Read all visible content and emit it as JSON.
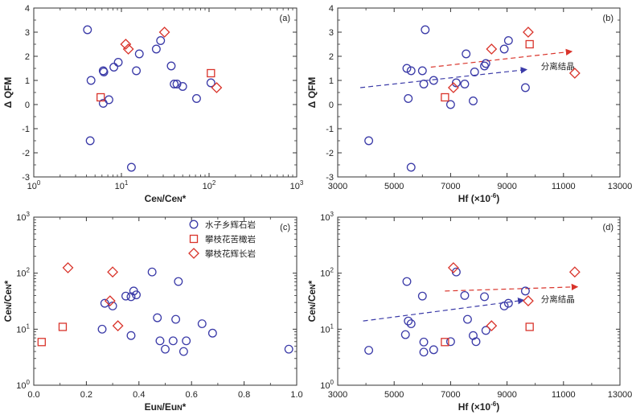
{
  "colors": {
    "circle": "#3b3ba8",
    "square": "#d9342b",
    "diamond": "#d9342b",
    "arrow_red": "#d9342b",
    "arrow_blue": "#3b3ba8",
    "axis": "#333333"
  },
  "legend": {
    "items": [
      {
        "marker": "circle",
        "label": "水子乡辉石岩"
      },
      {
        "marker": "square",
        "label": "攀枝花苦橄岩"
      },
      {
        "marker": "diamond",
        "label": "攀枝花辉长岩"
      }
    ]
  },
  "chart_data": [
    {
      "id": "a",
      "panel_label": "(a)",
      "type": "scatter",
      "xscale": "log",
      "yscale": "linear",
      "xlim": [
        1,
        1000
      ],
      "ylim": [
        -3,
        4
      ],
      "xticks": [
        1,
        10,
        100,
        1000
      ],
      "xtick_labels": [
        "10^0",
        "10^1",
        "10^2",
        "10^3"
      ],
      "yticks": [
        -3,
        -2,
        -1,
        0,
        1,
        2,
        3,
        4
      ],
      "ytick_labels": [
        "-3",
        "-2",
        "-1",
        "0",
        "1",
        "2",
        "3",
        "4"
      ],
      "xlabel": "CeN/CeN*",
      "ylabel": "Δ QFM",
      "series": [
        {
          "marker": "circle",
          "points": [
            [
              4.1,
              3.1
            ],
            [
              4.5,
              1.0
            ],
            [
              4.4,
              -1.5
            ],
            [
              6.2,
              1.4
            ],
            [
              6.3,
              1.35
            ],
            [
              6.2,
              0.05
            ],
            [
              7.2,
              0.2
            ],
            [
              8.2,
              1.55
            ],
            [
              9.2,
              1.75
            ],
            [
              13.0,
              -2.6
            ],
            [
              14.8,
              1.4
            ],
            [
              16.0,
              2.1
            ],
            [
              25,
              2.3
            ],
            [
              28,
              2.65
            ],
            [
              37,
              1.6
            ],
            [
              40,
              0.85
            ],
            [
              43,
              0.85
            ],
            [
              50,
              0.75
            ],
            [
              72,
              0.25
            ],
            [
              105,
              0.9
            ]
          ]
        },
        {
          "marker": "square",
          "points": [
            [
              5.8,
              0.3
            ],
            [
              105,
              1.3
            ]
          ]
        },
        {
          "marker": "diamond",
          "points": [
            [
              11.2,
              2.5
            ],
            [
              12.0,
              2.3
            ],
            [
              31,
              3.0
            ],
            [
              122,
              0.7
            ]
          ]
        }
      ],
      "arrows": []
    },
    {
      "id": "b",
      "panel_label": "(b)",
      "type": "scatter",
      "xscale": "linear",
      "yscale": "linear",
      "xlim": [
        3000,
        13000
      ],
      "ylim": [
        -3,
        4
      ],
      "xticks": [
        3000,
        5000,
        7000,
        9000,
        11000,
        13000
      ],
      "xtick_labels": [
        "3000",
        "5000",
        "7000",
        "9000",
        "11000",
        "13000"
      ],
      "yticks": [
        -3,
        -2,
        -1,
        0,
        1,
        2,
        3,
        4
      ],
      "ytick_labels": [
        "-3",
        "-2",
        "-1",
        "0",
        "1",
        "2",
        "3",
        "4"
      ],
      "xlabel": "Hf (×10^-6)",
      "ylabel": "Δ QFM",
      "series": [
        {
          "marker": "circle",
          "points": [
            [
              4100,
              -1.5
            ],
            [
              5450,
              1.5
            ],
            [
              5500,
              0.25
            ],
            [
              5600,
              1.4
            ],
            [
              5600,
              -2.6
            ],
            [
              6000,
              1.4
            ],
            [
              6050,
              0.85
            ],
            [
              6100,
              3.1
            ],
            [
              6400,
              1.0
            ],
            [
              7000,
              0.0
            ],
            [
              7200,
              0.9
            ],
            [
              7500,
              0.85
            ],
            [
              7550,
              2.1
            ],
            [
              7800,
              0.15
            ],
            [
              7850,
              1.35
            ],
            [
              8200,
              1.6
            ],
            [
              8250,
              1.7
            ],
            [
              8900,
              2.3
            ],
            [
              9050,
              2.65
            ],
            [
              9650,
              0.7
            ]
          ]
        },
        {
          "marker": "square",
          "points": [
            [
              6800,
              0.3
            ],
            [
              9800,
              2.5
            ]
          ]
        },
        {
          "marker": "diamond",
          "points": [
            [
              7100,
              0.7
            ],
            [
              8450,
              2.3
            ],
            [
              9750,
              3.0
            ],
            [
              11400,
              1.3
            ]
          ]
        }
      ],
      "arrows": [
        {
          "color": "red",
          "from": [
            6300,
            1.55
          ],
          "to": [
            11300,
            2.2
          ]
        },
        {
          "color": "blue",
          "from": [
            3800,
            0.7
          ],
          "to": [
            9700,
            1.45
          ]
        }
      ],
      "annotation": {
        "text": "分离结晶",
        "at": [
          10200,
          1.6
        ]
      }
    },
    {
      "id": "c",
      "panel_label": "(c)",
      "type": "scatter",
      "xscale": "linear",
      "yscale": "log",
      "xlim": [
        0.0,
        1.0
      ],
      "ylim": [
        1,
        1000
      ],
      "xticks": [
        0.0,
        0.2,
        0.4,
        0.6,
        0.8,
        1.0
      ],
      "xtick_labels": [
        "0.0",
        "0.2",
        "0.4",
        "0.6",
        "0.8",
        "1.0"
      ],
      "yticks": [
        1,
        10,
        100,
        1000
      ],
      "ytick_labels": [
        "10^0",
        "10^1",
        "10^2",
        "10^3"
      ],
      "xlabel": "EuN/EuN*",
      "ylabel": "CeN/CeN*",
      "series": [
        {
          "marker": "circle",
          "points": [
            [
              0.26,
              10
            ],
            [
              0.27,
              29
            ],
            [
              0.3,
              26
            ],
            [
              0.35,
              39
            ],
            [
              0.37,
              7.7
            ],
            [
              0.37,
              38
            ],
            [
              0.38,
              48
            ],
            [
              0.39,
              41
            ],
            [
              0.45,
              105
            ],
            [
              0.47,
              16
            ],
            [
              0.48,
              6.2
            ],
            [
              0.5,
              4.4
            ],
            [
              0.53,
              6.2
            ],
            [
              0.54,
              15
            ],
            [
              0.55,
              71
            ],
            [
              0.57,
              4.0
            ],
            [
              0.58,
              6.2
            ],
            [
              0.64,
              12.5
            ],
            [
              0.68,
              8.5
            ],
            [
              0.97,
              4.4
            ]
          ]
        },
        {
          "marker": "square",
          "points": [
            [
              0.03,
              5.9
            ],
            [
              0.11,
              11
            ]
          ]
        },
        {
          "marker": "diamond",
          "points": [
            [
              0.13,
              125
            ],
            [
              0.29,
              32
            ],
            [
              0.3,
              105
            ],
            [
              0.32,
              11.5
            ]
          ]
        }
      ],
      "arrows": []
    },
    {
      "id": "d",
      "panel_label": "(d)",
      "type": "scatter",
      "xscale": "linear",
      "yscale": "log",
      "xlim": [
        3000,
        13000
      ],
      "ylim": [
        1,
        1000
      ],
      "xticks": [
        3000,
        5000,
        7000,
        9000,
        11000,
        13000
      ],
      "xtick_labels": [
        "3000",
        "5000",
        "7000",
        "9000",
        "11000",
        "13000"
      ],
      "yticks": [
        1,
        10,
        100,
        1000
      ],
      "ytick_labels": [
        "10^0",
        "10^1",
        "10^2",
        "10^3"
      ],
      "xlabel": "Hf (×10^-6)",
      "ylabel": "CeN/CeN*",
      "series": [
        {
          "marker": "circle",
          "points": [
            [
              4100,
              4.2
            ],
            [
              5400,
              8
            ],
            [
              5450,
              71
            ],
            [
              5500,
              14
            ],
            [
              5600,
              12.5
            ],
            [
              6000,
              39
            ],
            [
              6050,
              5.9
            ],
            [
              6050,
              3.9
            ],
            [
              6400,
              4.3
            ],
            [
              7000,
              6
            ],
            [
              7200,
              105
            ],
            [
              7500,
              40
            ],
            [
              7600,
              15
            ],
            [
              7800,
              7.7
            ],
            [
              7900,
              6
            ],
            [
              8200,
              38
            ],
            [
              8250,
              9.5
            ],
            [
              8900,
              26
            ],
            [
              9050,
              29
            ],
            [
              9650,
              48
            ]
          ]
        },
        {
          "marker": "square",
          "points": [
            [
              6800,
              5.9
            ],
            [
              9800,
              11
            ]
          ]
        },
        {
          "marker": "diamond",
          "points": [
            [
              7100,
              125
            ],
            [
              8450,
              11.5
            ],
            [
              9750,
              32
            ],
            [
              11400,
              105
            ]
          ]
        }
      ],
      "arrows": [
        {
          "color": "red",
          "from": [
            6800,
            48
          ],
          "to": [
            11500,
            57
          ]
        },
        {
          "color": "blue",
          "from": [
            3900,
            14
          ],
          "to": [
            9600,
            33
          ]
        }
      ],
      "annotation": {
        "text": "分离结晶",
        "at": [
          10200,
          35
        ]
      }
    }
  ]
}
